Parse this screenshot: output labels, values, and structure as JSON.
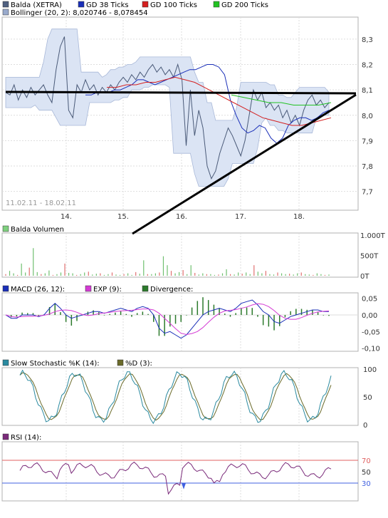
{
  "chart_data": [
    {
      "type": "line",
      "panel": "price",
      "legend": [
        {
          "label": "Balda (XETRA)",
          "color": "#506080"
        },
        {
          "label": "GD 38 Ticks",
          "color": "#1a2fb8"
        },
        {
          "label": "GD 100 Ticks",
          "color": "#d42020"
        },
        {
          "label": "GD 200 Ticks",
          "color": "#22c222"
        },
        {
          "label": "Bollinger (20, 2): 8,020746 - 8,078454",
          "color": "#99aacc"
        }
      ],
      "date_range": "11.02.11 - 18.02.11",
      "x_tick_labels": [
        "14.",
        "15.",
        "16.",
        "17.",
        "18."
      ],
      "y_tick_labels": [
        "8,3",
        "8,2",
        "8,1",
        "8,0",
        "7,9",
        "7,8",
        "7,7"
      ],
      "ylim": [
        7.64,
        8.37
      ],
      "series": [
        {
          "key": "price",
          "values": [
            8.09,
            8.08,
            8.12,
            8.06,
            8.1,
            8.07,
            8.11,
            8.08,
            8.1,
            8.12,
            8.08,
            8.05,
            8.18,
            8.27,
            8.31,
            8.02,
            7.99,
            8.12,
            8.09,
            8.14,
            8.1,
            8.12,
            8.08,
            8.11,
            8.09,
            8.12,
            8.1,
            8.13,
            8.15,
            8.13,
            8.16,
            8.14,
            8.17,
            8.15,
            8.18,
            8.2,
            8.17,
            8.19,
            8.16,
            8.18,
            8.15,
            8.2,
            8.14,
            7.88,
            8.1,
            7.92,
            8.02,
            7.95,
            7.8,
            7.75,
            7.78,
            7.85,
            7.9,
            7.95,
            7.92,
            7.88,
            7.84,
            7.9,
            8.0,
            8.1,
            8.06,
            8.09,
            8.03,
            8.05,
            8.02,
            8.04,
            7.99,
            8.02,
            7.97,
            8.0,
            7.96,
            8.02,
            8.06,
            8.08,
            8.04,
            8.06,
            8.03,
            8.05
          ]
        },
        {
          "key": "gd38",
          "values": [
            8.08,
            8.08,
            8.09,
            8.09,
            8.09,
            8.1,
            8.1,
            8.11,
            8.12,
            8.14,
            8.14,
            8.13,
            8.12,
            8.13,
            8.14,
            8.15,
            8.16,
            8.17,
            8.18,
            8.18,
            8.19,
            8.2,
            8.2,
            8.19,
            8.16,
            8.06,
            8.0,
            7.95,
            7.93,
            7.94,
            7.96,
            7.95,
            7.91,
            7.89,
            7.91,
            7.96,
            7.98,
            7.99,
            7.99,
            7.98,
            7.99,
            8.01,
            8.02
          ]
        },
        {
          "key": "gd100",
          "values": [
            8.11,
            8.11,
            8.12,
            8.12,
            8.13,
            8.13,
            8.14,
            8.15,
            8.14,
            8.13,
            8.11,
            8.09,
            8.07,
            8.05,
            8.03,
            8.01,
            7.99,
            7.98,
            7.97,
            7.96,
            7.96,
            7.97,
            7.98,
            7.99
          ]
        },
        {
          "key": "gd200",
          "values": [
            8.08,
            8.07,
            8.06,
            8.05,
            8.05,
            8.04,
            8.04,
            8.04,
            8.05
          ]
        }
      ],
      "bollinger": {
        "upper_end": 8.078454,
        "lower_end": 8.020746
      }
    },
    {
      "type": "bar",
      "panel": "volume",
      "legend": [
        {
          "label": "Balda Volumen",
          "color": "#7fd07f"
        }
      ],
      "y_tick_labels": [
        "1.000T",
        "500T",
        "0T"
      ],
      "ylim": [
        0,
        1000
      ]
    },
    {
      "type": "line",
      "panel": "macd",
      "legend": [
        {
          "label": "MACD (26, 12):",
          "color": "#1a2fb8"
        },
        {
          "label": "EXP (9):",
          "color": "#d43ad4"
        },
        {
          "label": "Divergence:",
          "color": "#2c7a2c"
        }
      ],
      "y_tick_labels": [
        "0,05",
        "0,00",
        "-0,05",
        "-0,10"
      ],
      "ylim": [
        -0.105,
        0.06
      ]
    },
    {
      "type": "line",
      "panel": "stochastic",
      "legend": [
        {
          "label": "Slow Stochastic %K (14):",
          "color": "#2a8aa0"
        },
        {
          "label": "%D (3):",
          "color": "#6b6b2a"
        }
      ],
      "y_tick_labels": [
        "100",
        "50",
        "0"
      ],
      "ylim": [
        0,
        100
      ]
    },
    {
      "type": "line",
      "panel": "rsi",
      "legend": [
        {
          "label": "RSI (14):",
          "color": "#7a2a7a"
        }
      ],
      "y_tick_labels": [
        "70",
        "50",
        "30"
      ],
      "ylim": [
        0,
        100
      ],
      "reference_lines": [
        {
          "value": 70,
          "color": "#e06060"
        },
        {
          "value": 30,
          "color": "#4060e0"
        }
      ]
    }
  ],
  "annotation_color": "#000000"
}
